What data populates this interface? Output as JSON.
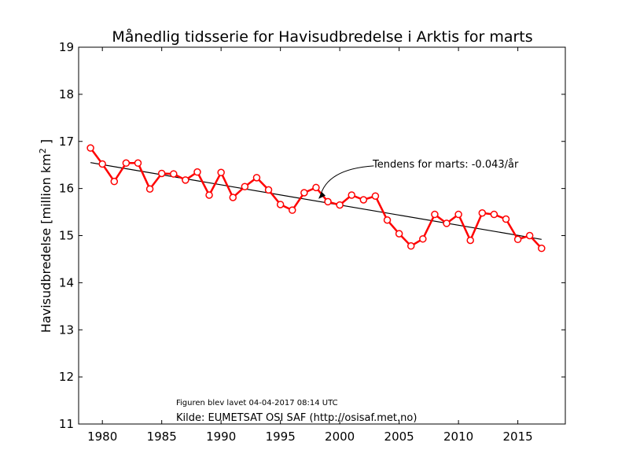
{
  "chart_data": {
    "type": "line",
    "title": "Månedlig tidsserie for Havisudbredelse i Arktis for marts",
    "xlabel": "",
    "ylabel": "Havisudbredelse [million km²]",
    "ylabel_base": "Havisudbredelse [million km",
    "ylabel_sup": "2",
    "ylabel_end": " ]",
    "xlim": [
      1978,
      2019
    ],
    "ylim": [
      11,
      19
    ],
    "xticks": [
      1980,
      1985,
      1990,
      1995,
      2000,
      2005,
      2010,
      2015
    ],
    "yticks": [
      11,
      12,
      13,
      14,
      15,
      16,
      17,
      18,
      19
    ],
    "grid": false,
    "series": [
      {
        "color": "#ff0000",
        "marker": "open-circle",
        "x": [
          1979,
          1980,
          1981,
          1982,
          1983,
          1984,
          1985,
          1986,
          1987,
          1988,
          1989,
          1990,
          1991,
          1992,
          1993,
          1994,
          1995,
          1996,
          1997,
          1998,
          1999,
          2000,
          2001,
          2002,
          2003,
          2004,
          2005,
          2006,
          2007,
          2008,
          2009,
          2010,
          2011,
          2012,
          2013,
          2014,
          2015,
          2016,
          2017
        ],
        "y": [
          16.86,
          16.52,
          16.15,
          16.54,
          16.54,
          15.99,
          16.32,
          16.31,
          16.18,
          16.35,
          15.86,
          16.34,
          15.81,
          16.04,
          16.23,
          15.97,
          15.66,
          15.54,
          15.91,
          16.02,
          15.72,
          15.65,
          15.86,
          15.76,
          15.84,
          15.33,
          15.04,
          14.78,
          14.93,
          15.45,
          15.26,
          15.45,
          14.9,
          15.48,
          15.45,
          15.35,
          14.92,
          15.0,
          14.73
        ]
      }
    ],
    "trend": {
      "color": "#000000",
      "x": [
        1979,
        2017
      ],
      "y": [
        16.55,
        14.92
      ],
      "annotation": "Tendens for marts: -0.043/år",
      "arrow_target": [
        1998.2,
        15.78
      ],
      "text_anchor": [
        2003,
        16.48
      ]
    },
    "annotations": {
      "created": "Figuren blev lavet 04-04-2017 08:14 UTC",
      "source": "Kilde: EUMETSAT OSI SAF (http://osisaf.met.no)"
    }
  }
}
